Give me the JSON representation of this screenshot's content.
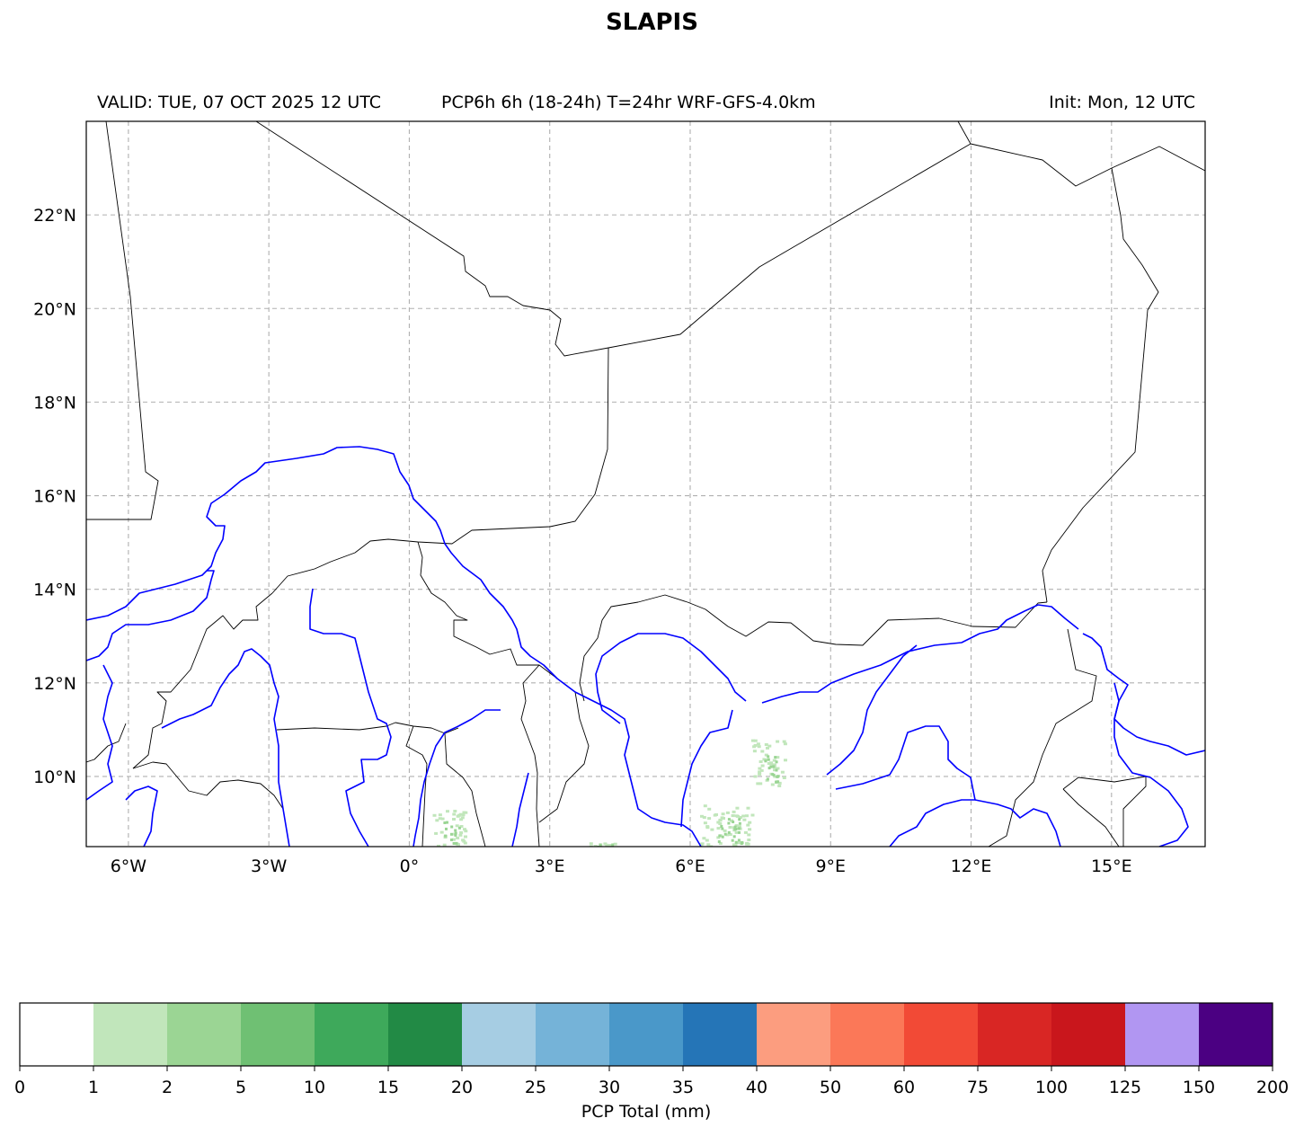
{
  "title": "SLAPIS",
  "subtitle_left": "VALID: TUE, 07 OCT 2025 12 UTC",
  "subtitle_center": "PCP6h 6h (18-24h) T=24hr WRF-GFS-4.0km",
  "subtitle_right": "Init: Mon, 12 UTC",
  "map": {
    "lon_ticks": [
      "6°W",
      "3°W",
      "0°",
      "3°E",
      "6°E",
      "9°E",
      "12°E",
      "15°E"
    ],
    "lat_ticks": [
      "22°N",
      "20°N",
      "18°N",
      "16°N",
      "14°N",
      "12°N",
      "10°N"
    ],
    "lon_range": [
      -6.9,
      17
    ],
    "lat_range": [
      8.5,
      24
    ],
    "colors": {
      "borders": "#000000",
      "rivers": "#0000ff",
      "grid": "#b0b0b0"
    }
  },
  "colorbar": {
    "label": "PCP Total (mm)",
    "ticks": [
      "0",
      "1",
      "2",
      "5",
      "10",
      "15",
      "20",
      "25",
      "30",
      "35",
      "40",
      "50",
      "60",
      "75",
      "100",
      "125",
      "150",
      "200"
    ],
    "colors": [
      "#ffffff",
      "#c1e6bb",
      "#9bd594",
      "#6fc073",
      "#3ea95b",
      "#228a45",
      "#a6cde3",
      "#75b3d8",
      "#4a98c9",
      "#2575b7",
      "#fc9d7f",
      "#fb7858",
      "#f24a36",
      "#d92624",
      "#c9161c",
      "#b196f2",
      "#4b0082"
    ]
  },
  "chart_data": {
    "type": "heatmap",
    "title": "SLAPIS",
    "variable": "PCP Total (mm)",
    "precip_areas": [
      {
        "lon": [
          6.2,
          7.3
        ],
        "lat": [
          8.5,
          9.4
        ],
        "class_mm": "1-2"
      },
      {
        "lon": [
          7.3,
          8.0
        ],
        "lat": [
          9.8,
          10.8
        ],
        "class_mm": "1-2"
      },
      {
        "lon": [
          0.5,
          1.2
        ],
        "lat": [
          8.5,
          9.3
        ],
        "class_mm": "1-2"
      },
      {
        "lon": [
          3.8,
          4.5
        ],
        "lat": [
          8.5,
          8.6
        ],
        "class_mm": "1-2"
      }
    ]
  }
}
